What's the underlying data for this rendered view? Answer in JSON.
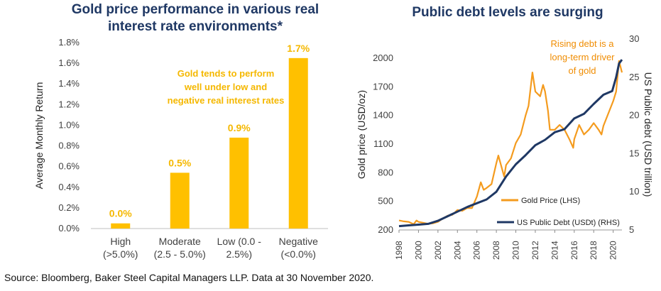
{
  "colors": {
    "gold_bar": "#ffc000",
    "gold_line": "#f49b1e",
    "debt_line": "#1f3864",
    "title": "#1f3864"
  },
  "source": "Source: Bloomberg, Baker Steel Capital Managers LLP. Data at 30 November 2020.",
  "chart_data": [
    {
      "type": "bar",
      "title": "Gold price performance in various real interest rate environments*",
      "title_lines": [
        "Gold price performance in various real",
        "interest rate environments*"
      ],
      "ylabel": "Average Monthly Return",
      "ylim": [
        0,
        1.8
      ],
      "y_ticks": [
        "0.0%",
        "0.2%",
        "0.4%",
        "0.6%",
        "0.8%",
        "1.0%",
        "1.2%",
        "1.4%",
        "1.6%",
        "1.8%"
      ],
      "categories": [
        [
          "High",
          "(>5.0%)"
        ],
        [
          "Moderate",
          "(2.5 - 5.0%)"
        ],
        [
          "Low (0.0 -",
          "2.5%)"
        ],
        [
          "Negative",
          "(<0.0%)"
        ]
      ],
      "values": [
        0.05,
        0.54,
        0.88,
        1.65
      ],
      "data_labels": [
        "0.0%",
        "0.5%",
        "0.9%",
        "1.7%"
      ],
      "annotation": [
        "Gold tends to perform",
        "well under low and",
        "negative real interest rates"
      ]
    },
    {
      "type": "line",
      "title": "Public debt levels are surging",
      "ylabel_left": "Gold price (USD/oz)",
      "ylabel_right": "US Public debt (USD trillion)",
      "x_ticks": [
        "1998",
        "2000",
        "2002",
        "2004",
        "2006",
        "2008",
        "2010",
        "2012",
        "2014",
        "2016",
        "2018",
        "2020"
      ],
      "xlim": [
        1998,
        2020.9
      ],
      "y_left_ticks": [
        "200",
        "500",
        "800",
        "1100",
        "1400",
        "1700",
        "2000"
      ],
      "ylim_left": [
        200,
        2200
      ],
      "y_right_ticks": [
        "5",
        "10",
        "15",
        "20",
        "25",
        "30"
      ],
      "ylim_right": [
        5,
        30
      ],
      "annotation": [
        "Rising debt is a",
        "long-term driver",
        "of gold"
      ],
      "series": [
        {
          "name": "Gold Price (LHS)",
          "axis": "left",
          "x": [
            1998.0,
            1998.5,
            1999.0,
            1999.5,
            1999.8,
            2000.0,
            2000.5,
            2001.0,
            2001.5,
            2002.0,
            2002.5,
            2003.0,
            2003.5,
            2004.0,
            2004.5,
            2005.0,
            2005.5,
            2006.0,
            2006.4,
            2006.7,
            2007.0,
            2007.5,
            2008.0,
            2008.2,
            2008.8,
            2009.0,
            2009.5,
            2010.0,
            2010.5,
            2011.0,
            2011.3,
            2011.7,
            2012.0,
            2012.5,
            2012.8,
            2013.0,
            2013.3,
            2013.5,
            2014.0,
            2014.5,
            2015.0,
            2015.5,
            2015.9,
            2016.0,
            2016.5,
            2017.0,
            2017.5,
            2018.0,
            2018.5,
            2018.8,
            2019.0,
            2019.5,
            2020.0,
            2020.3,
            2020.6,
            2020.9
          ],
          "values": [
            300,
            290,
            285,
            260,
            300,
            285,
            275,
            265,
            270,
            285,
            320,
            350,
            360,
            410,
            400,
            430,
            430,
            550,
            700,
            620,
            640,
            680,
            900,
            980,
            760,
            880,
            950,
            1110,
            1200,
            1400,
            1500,
            1850,
            1650,
            1600,
            1720,
            1650,
            1450,
            1250,
            1250,
            1300,
            1250,
            1150,
            1060,
            1150,
            1300,
            1200,
            1250,
            1320,
            1250,
            1200,
            1290,
            1420,
            1550,
            1650,
            1970,
            1850
          ]
        },
        {
          "name": "US Public Debt (USDt) (RHS)",
          "axis": "right",
          "x": [
            1998,
            1999,
            2000,
            2001,
            2002,
            2003,
            2004,
            2005,
            2006,
            2007,
            2008,
            2009,
            2010,
            2011,
            2012,
            2013,
            2014,
            2015,
            2016,
            2017,
            2018,
            2019,
            2019.9,
            2020.3,
            2020.6,
            2020.9
          ],
          "values": [
            5.5,
            5.6,
            5.7,
            5.8,
            6.2,
            6.8,
            7.4,
            8.0,
            8.5,
            9.0,
            10.0,
            12.0,
            13.6,
            14.8,
            16.1,
            16.8,
            17.8,
            18.2,
            19.6,
            20.2,
            21.5,
            22.7,
            23.2,
            25.0,
            26.8,
            27.3
          ]
        }
      ]
    }
  ]
}
